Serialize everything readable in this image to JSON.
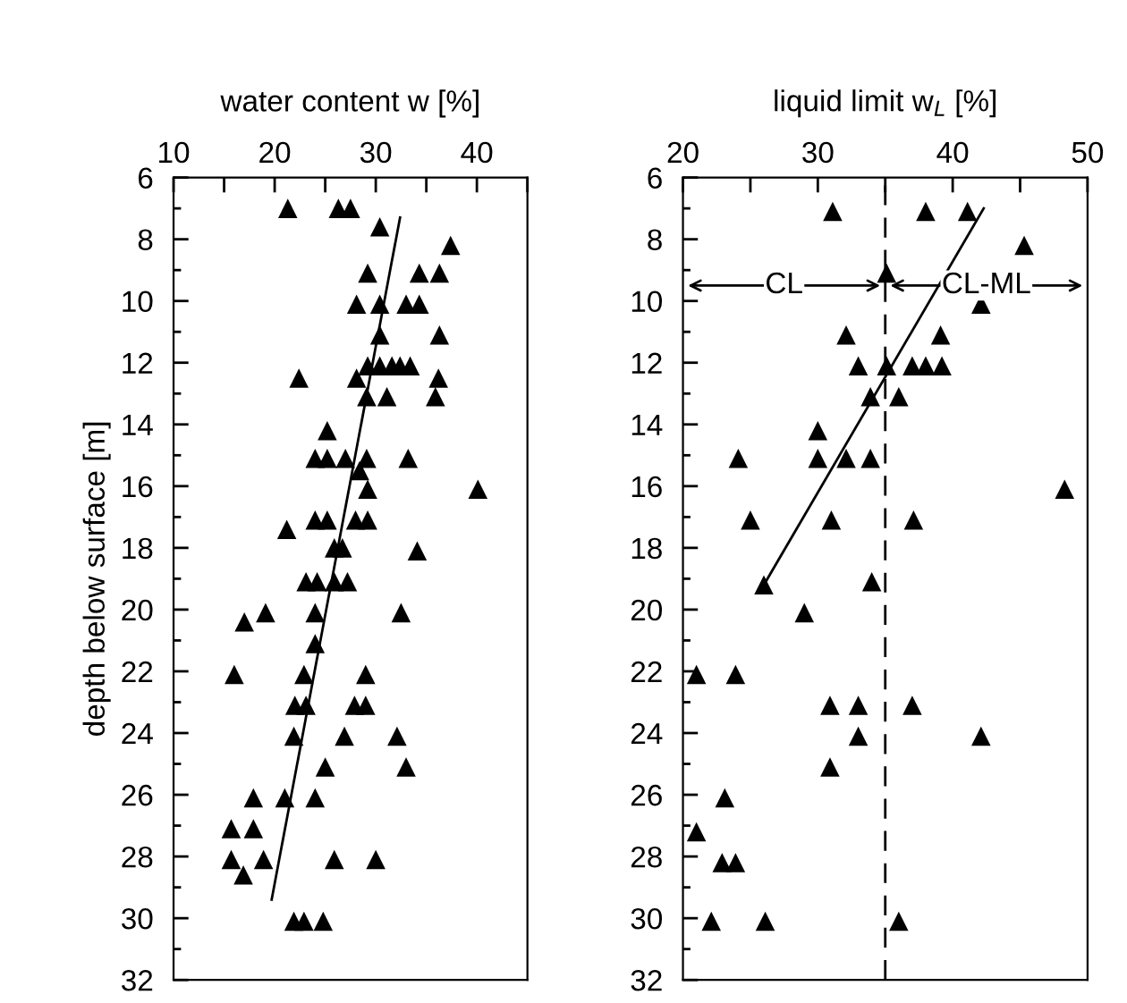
{
  "chart_data": [
    {
      "type": "scatter",
      "xlabel": "water content w [%]",
      "ylabel": "depth below surface [m]",
      "xlim": [
        10,
        45
      ],
      "ylim": [
        32,
        6
      ],
      "xticks": [
        10,
        {
          "value": 15,
          "label": null
        },
        20,
        {
          "value": 25,
          "label": null
        },
        30,
        {
          "value": 35,
          "label": null
        },
        40,
        {
          "value": 45,
          "label": null
        }
      ],
      "yticks": [
        6,
        {
          "value": 7,
          "label": null
        },
        8,
        {
          "value": 9,
          "label": null
        },
        10,
        {
          "value": 11,
          "label": null
        },
        12,
        {
          "value": 13,
          "label": null
        },
        14,
        {
          "value": 15,
          "label": null
        },
        16,
        {
          "value": 17,
          "label": null
        },
        18,
        {
          "value": 19,
          "label": null
        },
        20,
        {
          "value": 21,
          "label": null
        },
        22,
        {
          "value": 23,
          "label": null
        },
        24,
        {
          "value": 25,
          "label": null
        },
        26,
        {
          "value": 27,
          "label": null
        },
        28,
        {
          "value": 29,
          "label": null
        },
        30,
        {
          "value": 31,
          "label": null
        },
        32
      ],
      "grid": false,
      "legend": false,
      "series": [
        {
          "marker": "triangle",
          "color": "#000000",
          "x": [
            21.3,
            26.3,
            27.5,
            30.4,
            37.4,
            29.2,
            34.3,
            36.3,
            28.1,
            30.4,
            33.0,
            34.3,
            30.4,
            36.3,
            29.2,
            30.4,
            31.6,
            32.4,
            33.4,
            22.4,
            28.1,
            36.2,
            29.1,
            31.1,
            35.9,
            25.2,
            24.0,
            25.2,
            27.0,
            29.1,
            33.2,
            28.4,
            29.2,
            40.1,
            24.0,
            25.2,
            28.0,
            29.2,
            21.2,
            25.9,
            26.7,
            34.1,
            23.1,
            24.2,
            25.9,
            27.2,
            19.1,
            17.0,
            24.0,
            32.5,
            24.0,
            16.0,
            22.9,
            29.0,
            22.0,
            23.1,
            27.9,
            29.0,
            21.9,
            26.9,
            32.1,
            25.0,
            33.0,
            17.9,
            21.0,
            24.0,
            15.7,
            17.9,
            15.7,
            18.9,
            25.9,
            30.0,
            16.9,
            21.9,
            22.9,
            24.8
          ],
          "values": [
            7.0,
            7.0,
            7.0,
            7.6,
            8.2,
            9.1,
            9.1,
            9.1,
            10.1,
            10.1,
            10.1,
            10.1,
            11.1,
            11.1,
            12.1,
            12.1,
            12.1,
            12.1,
            12.1,
            12.5,
            12.5,
            12.5,
            13.1,
            13.1,
            13.1,
            14.2,
            15.1,
            15.1,
            15.1,
            15.1,
            15.1,
            15.5,
            16.1,
            16.1,
            17.1,
            17.1,
            17.1,
            17.1,
            17.4,
            18.0,
            18.0,
            18.1,
            19.1,
            19.1,
            19.1,
            19.1,
            20.1,
            20.4,
            20.1,
            20.1,
            21.1,
            22.1,
            22.1,
            22.1,
            23.1,
            23.1,
            23.1,
            23.1,
            24.1,
            24.1,
            24.1,
            25.1,
            25.1,
            26.1,
            26.1,
            26.1,
            27.1,
            27.1,
            28.1,
            28.1,
            28.1,
            28.1,
            28.6,
            30.1,
            30.1,
            30.1
          ]
        },
        {
          "type": "line",
          "color": "#000000",
          "x": [
            32.4,
            19.7
          ],
          "values": [
            7.3,
            29.4
          ]
        }
      ]
    },
    {
      "type": "scatter",
      "xlabel": "liquid limit w$_{L}$ [%]",
      "xlim": [
        20,
        50
      ],
      "ylim": [
        32,
        6
      ],
      "xticks": [
        20,
        {
          "value": 25,
          "label": null
        },
        30,
        {
          "value": 35,
          "label": null
        },
        40,
        {
          "value": 45,
          "label": null
        },
        50
      ],
      "yticks": [
        6,
        {
          "value": 7,
          "label": null
        },
        8,
        {
          "value": 9,
          "label": null
        },
        10,
        {
          "value": 11,
          "label": null
        },
        12,
        {
          "value": 13,
          "label": null
        },
        14,
        {
          "value": 15,
          "label": null
        },
        16,
        {
          "value": 17,
          "label": null
        },
        18,
        {
          "value": 19,
          "label": null
        },
        20,
        {
          "value": 21,
          "label": null
        },
        22,
        {
          "value": 23,
          "label": null
        },
        24,
        {
          "value": 25,
          "label": null
        },
        26,
        {
          "value": 27,
          "label": null
        },
        28,
        {
          "value": 29,
          "label": null
        },
        30,
        {
          "value": 31,
          "label": null
        },
        32
      ],
      "grid": false,
      "legend": false,
      "ref_lines": [
        {
          "axis": "x",
          "value": 35,
          "line_style": "dashed",
          "color": "#000000"
        }
      ],
      "annotations": [
        {
          "text": "CL",
          "x": 35,
          "y": 9.5
        },
        {
          "text": "CL-ML",
          "x": 35,
          "y": 9.5
        }
      ],
      "series": [
        {
          "marker": "triangle",
          "color": "#000000",
          "x": [
            31.1,
            38.0,
            41.1,
            45.3,
            35.1,
            42.1,
            32.1,
            39.1,
            33.0,
            35.1,
            37.0,
            38.0,
            39.2,
            33.9,
            36.0,
            30.0,
            24.1,
            30.0,
            32.1,
            33.9,
            48.3,
            25.0,
            31.0,
            37.1,
            26.0,
            34.0,
            29.0,
            21.0,
            23.9,
            30.9,
            33.0,
            37.0,
            33.0,
            42.1,
            30.9,
            23.1,
            21.0,
            22.9,
            23.9,
            22.1,
            26.1,
            36.0
          ],
          "values": [
            7.1,
            7.1,
            7.1,
            8.2,
            9.1,
            10.1,
            11.1,
            11.1,
            12.1,
            12.1,
            12.1,
            12.1,
            12.1,
            13.1,
            13.1,
            14.2,
            15.1,
            15.1,
            15.1,
            15.1,
            16.1,
            17.1,
            17.1,
            17.1,
            19.2,
            19.1,
            20.1,
            22.1,
            22.1,
            23.1,
            23.1,
            23.1,
            24.1,
            24.1,
            25.1,
            26.1,
            27.2,
            28.2,
            28.2,
            30.1,
            30.1,
            30.1
          ]
        },
        {
          "type": "line",
          "color": "#000000",
          "x": [
            26.0,
            42.3
          ],
          "values": [
            19.2,
            7.0
          ]
        }
      ]
    }
  ]
}
